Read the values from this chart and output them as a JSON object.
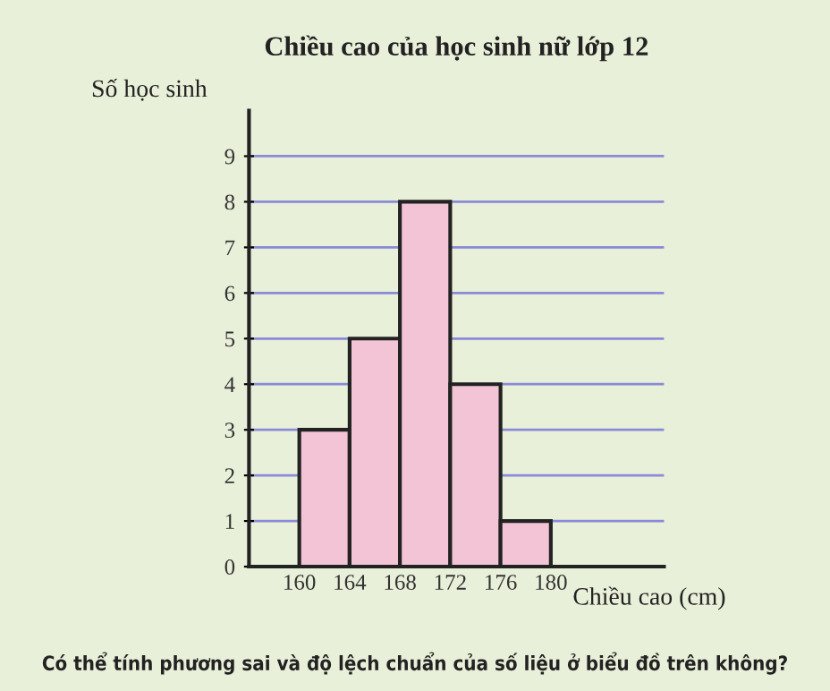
{
  "chart_data": {
    "type": "histogram",
    "title": "Chiều cao của học sinh nữ lớp 12",
    "xlabel": "Chiều cao (cm)",
    "ylabel": "Số học sinh",
    "bins": [
      160,
      164,
      168,
      172,
      176,
      180
    ],
    "values": [
      3,
      5,
      8,
      4,
      1
    ],
    "color": "#f2c4d6",
    "xlim": [
      156,
      189
    ],
    "xticks": [
      160,
      164,
      168,
      172,
      176,
      180
    ],
    "ylim": [
      0,
      10
    ],
    "yticks": [
      0,
      1,
      2,
      3,
      4,
      5,
      6,
      7,
      8,
      9
    ],
    "grid": "y",
    "annotations": [
      "Có thể tính phương sai và độ lệch chuẩn của số liệu ở biểu đồ trên không?"
    ]
  }
}
